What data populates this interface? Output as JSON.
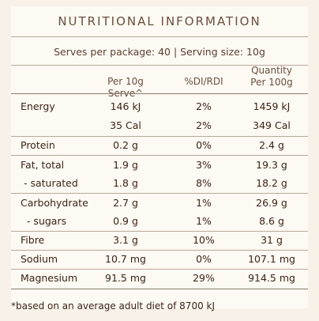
{
  "title": "NUTRITIONAL INFORMATION",
  "serves_line": "Serves per package: 40   |   Serving size: 10g",
  "headers": {
    "col1": "Per 10g Serve^",
    "col2": "%DI/RDI",
    "col3_line1": "Quantity",
    "col3_line2": "Per 100g"
  },
  "rows": [
    {
      "name": "Energy",
      "per_serve": "146 kJ",
      "di": "2%",
      "per_100g": "1459 kJ"
    },
    {
      "name": "",
      "per_serve": "35 Cal",
      "di": "2%",
      "per_100g": "349 Cal"
    },
    {
      "name": "Protein",
      "per_serve": "0.2 g",
      "di": "0%",
      "per_100g": "2.4 g"
    },
    {
      "name": "Fat, total",
      "per_serve": "1.9 g",
      "di": "3%",
      "per_100g": "19.3 g"
    },
    {
      "name": " - saturated",
      "per_serve": "1.8 g",
      "di": "8%",
      "per_100g": "18.2 g"
    },
    {
      "name": "Carbohydrate",
      "per_serve": "2.7 g",
      "di": "1%",
      "per_100g": "26.9 g"
    },
    {
      "name": "  - sugars",
      "per_serve": "0.9 g",
      "di": "1%",
      "per_100g": "8.6 g"
    },
    {
      "name": "Fibre",
      "per_serve": "3.1 g",
      "di": "10%",
      "per_100g": "31 g"
    },
    {
      "name": "Sodium",
      "per_serve": "10.7 mg",
      "di": "0%",
      "per_100g": "107.1 mg"
    },
    {
      "name": "Magnesium",
      "per_serve": "91.5 mg",
      "di": "29%",
      "per_100g": "914.5 mg"
    }
  ],
  "footnote": "*based on an average adult diet of 8700 kJ"
}
